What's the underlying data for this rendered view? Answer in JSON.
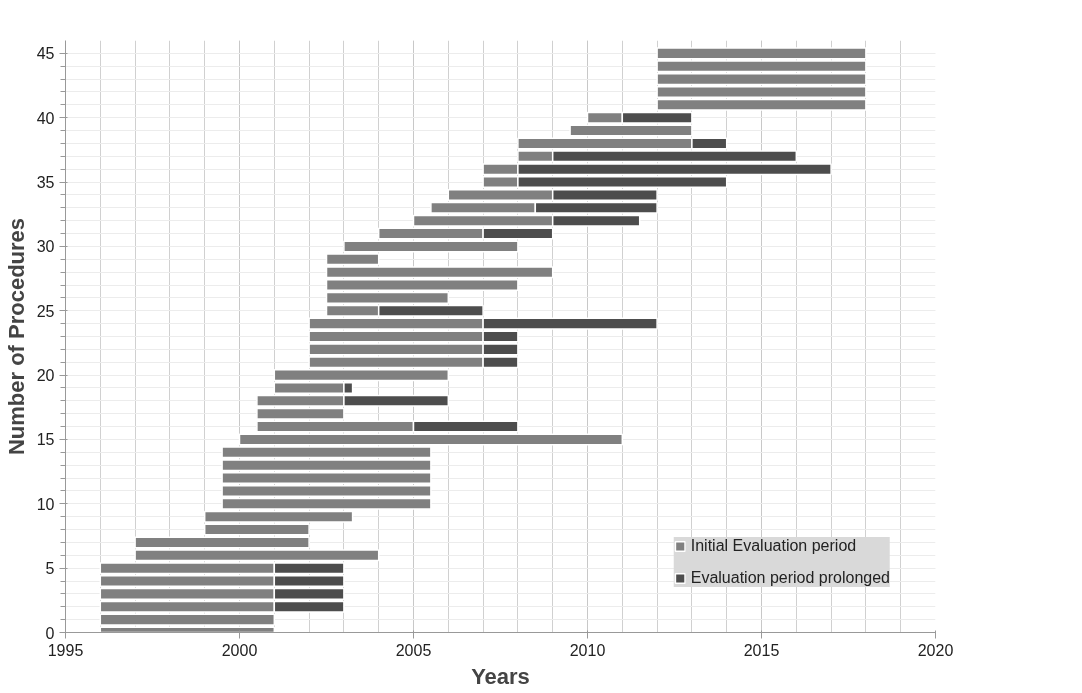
{
  "chart_data": {
    "type": "bar",
    "orientation": "horizontal",
    "xlabel": "Years",
    "ylabel": "Number of Procedures",
    "categories": [
      "45",
      null,
      null,
      null,
      null,
      "40",
      null,
      null,
      null,
      null,
      "35",
      null,
      null,
      null,
      null,
      "30",
      null,
      null,
      null,
      null,
      "25",
      null,
      null,
      null,
      null,
      "20",
      null,
      null,
      null,
      null,
      "15",
      null,
      null,
      null,
      null,
      "10",
      null,
      null,
      null,
      null,
      "5",
      null,
      null,
      null,
      null,
      "0"
    ],
    "series": [
      {
        "name": "Initial Evaluation period",
        "color": "#808080",
        "base": [
          2012,
          2012,
          2012,
          2012,
          2012,
          2010,
          2009.5,
          2008,
          2008,
          2007,
          2007,
          2006,
          2005.5,
          2005,
          2004,
          2003,
          2002.5,
          2002.5,
          2002.5,
          2002.5,
          2002.5,
          2002,
          2002,
          2002,
          2002,
          2001,
          2001,
          2000.5,
          2000.5,
          2000.5,
          2000,
          1999.5,
          1999.5,
          1999.5,
          1999.5,
          1999.5,
          1999,
          1999,
          1997,
          1997,
          1996,
          1996,
          1996,
          1996,
          1996,
          1996
        ],
        "values": [
          6,
          6,
          6,
          6,
          6,
          1,
          3.5,
          5,
          1,
          1,
          1,
          3,
          3,
          4,
          3,
          5,
          1.5,
          6.5,
          5.5,
          3.5,
          1.5,
          5,
          5,
          5,
          5,
          5,
          2,
          2.5,
          2.5,
          4.5,
          11,
          6,
          6,
          6,
          6,
          6,
          4.25,
          3,
          5,
          7,
          5,
          5,
          5,
          5,
          5,
          5
        ]
      },
      {
        "name": "Evaluation period prolonged",
        "color": "#4d4d4d",
        "base": [
          null,
          null,
          null,
          null,
          null,
          2011,
          null,
          2013,
          2009,
          2008,
          2008,
          2009,
          2008.5,
          2009,
          2007,
          null,
          null,
          null,
          null,
          null,
          2004,
          2007,
          2007,
          2007,
          2007,
          null,
          2003,
          2003,
          null,
          2005,
          null,
          null,
          null,
          null,
          null,
          null,
          null,
          null,
          null,
          null,
          2001,
          2001,
          2001,
          2001,
          null,
          null
        ],
        "values": [
          null,
          null,
          null,
          null,
          null,
          2,
          null,
          1,
          7,
          9,
          6,
          3,
          3.5,
          2.5,
          2,
          null,
          null,
          null,
          null,
          null,
          3,
          5,
          1,
          1,
          1,
          null,
          0.25,
          3,
          null,
          3,
          null,
          null,
          null,
          null,
          null,
          null,
          null,
          null,
          null,
          null,
          2,
          2,
          2,
          2,
          null,
          null
        ]
      }
    ],
    "xlim": [
      1995,
      2020
    ],
    "xticks": [
      1995,
      2000,
      2005,
      2010,
      2015,
      2020
    ],
    "grid": true,
    "legend": "bottom right"
  }
}
